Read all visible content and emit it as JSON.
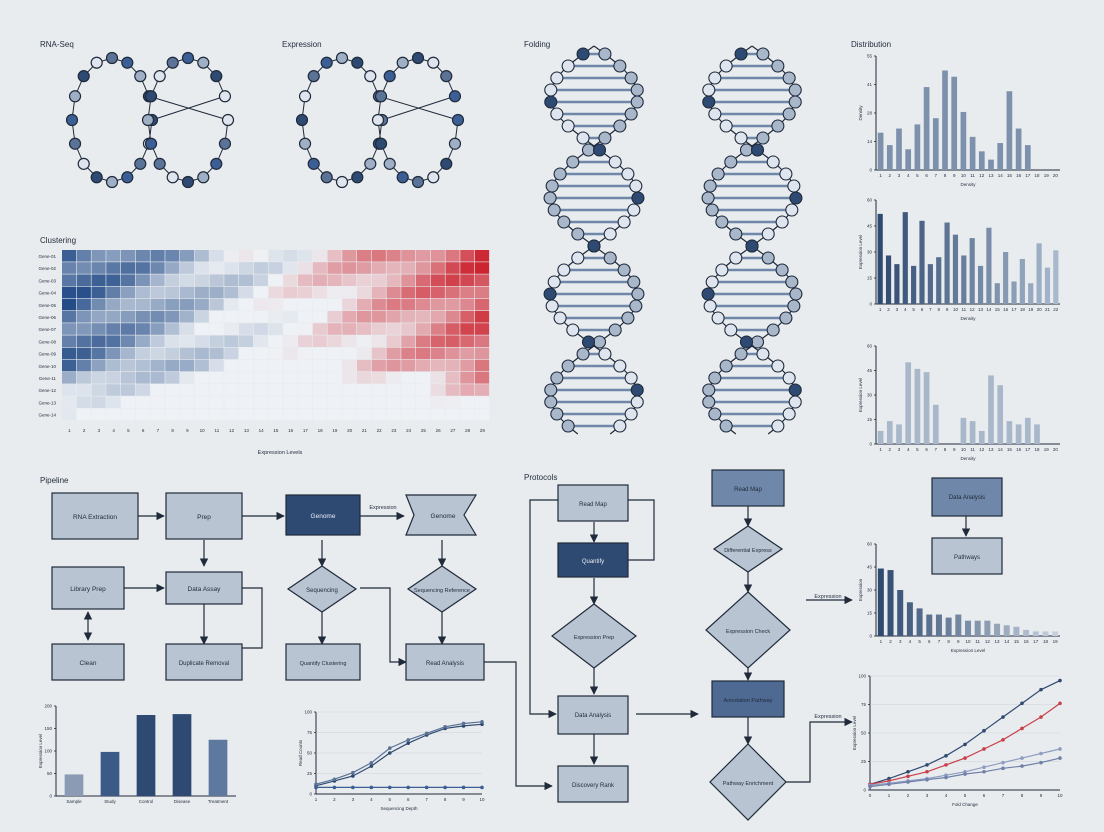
{
  "sections": {
    "rnaseq": "RNA-Seq",
    "expression": "Expression",
    "folding": "Folding",
    "distribution": "Distribution",
    "heatmap": "Clustering",
    "pipeline": "Pipeline",
    "protocol": "Protocols"
  },
  "heatmap": {
    "rows": 14,
    "cols": 29,
    "row_labels": [
      "Gene-01",
      "Gene-02",
      "Gene-03",
      "Gene-04",
      "Gene-05",
      "Gene-06",
      "Gene-07",
      "Gene-08",
      "Gene-09",
      "Gene-10",
      "Gene-11",
      "Gene-12",
      "Gene-13",
      "Gene-14"
    ],
    "col_labels": [
      "1",
      "2",
      "3",
      "4",
      "5",
      "6",
      "7",
      "8",
      "9",
      "10",
      "11",
      "12",
      "13",
      "14",
      "15",
      "16",
      "17",
      "18",
      "19",
      "20",
      "21",
      "22",
      "23",
      "24",
      "25",
      "26",
      "27",
      "28",
      "29"
    ],
    "xlabel": "Expression Levels",
    "colors": {
      "low": "#3b5f94",
      "mid": "#eef1f5",
      "high": "#d2454f"
    }
  },
  "flow_left": {
    "nodes": {
      "rna": "RNA Extraction",
      "prep": "Prep",
      "library": "Library Prep",
      "data_assay": "Data Assay",
      "qc": "Clean",
      "dedup": "Duplicate Removal",
      "genome": "Genome",
      "sequencing": "Sequencing",
      "quantify": "Quantify Clustering",
      "genome2": "Genome",
      "sequencing_ref": "Sequencing Reference",
      "read_analysis": "Read Analysis"
    },
    "edge_label": "Expression"
  },
  "flow_mid": {
    "nodes": {
      "read_map": "Read Map",
      "quantify": "Quantify",
      "expression_prep": "Expression Prep",
      "data_analysis": "Data Analysis",
      "discovery": "Discovery Rank"
    }
  },
  "flow_right": {
    "nodes": {
      "read_map": "Read Map",
      "diff": "Differential Express",
      "expression_check": "Expression Check",
      "annotation": "Annotation Pathway",
      "pathway": "Pathway Enrichment",
      "data_analysis": "Data Analysis",
      "pathways": "Pathways"
    },
    "edge_label": "Expression",
    "edge_label2": "Expression"
  },
  "chart_data": [
    {
      "type": "bar",
      "ylabel": "Density",
      "xlabel": "Density",
      "categories": [
        "1",
        "2",
        "3",
        "4",
        "5",
        "6",
        "7",
        "8",
        "9",
        "10",
        "11",
        "12",
        "13",
        "14",
        "15",
        "16",
        "17",
        "18",
        "19",
        "20"
      ],
      "values": [
        18,
        12,
        20,
        10,
        22,
        40,
        25,
        48,
        45,
        28,
        16,
        9,
        5,
        13,
        38,
        20,
        12,
        0,
        0,
        0
      ],
      "ylim": [
        0,
        55
      ],
      "color": "#7d91ad"
    },
    {
      "type": "bar",
      "ylabel": "Expression Level",
      "xlabel": "Density",
      "categories": [
        "1",
        "2",
        "3",
        "4",
        "5",
        "6",
        "7",
        "8",
        "9",
        "10",
        "11",
        "12",
        "13",
        "14",
        "15",
        "16",
        "17",
        "18",
        "19",
        "20",
        "21",
        "22"
      ],
      "values": [
        52,
        28,
        23,
        53,
        22,
        48,
        23,
        27,
        47,
        40,
        28,
        38,
        22,
        44,
        12,
        30,
        13,
        26,
        12,
        35,
        21,
        31
      ],
      "ylim": [
        0,
        60
      ],
      "color_gradient": [
        "#2f4a70",
        "#a8b8cd"
      ]
    },
    {
      "type": "bar",
      "ylabel": "Expression Level",
      "xlabel": "Density",
      "categories": [
        "1",
        "2",
        "3",
        "4",
        "5",
        "6",
        "7",
        "8",
        "9",
        "10",
        "11",
        "12",
        "13",
        "14",
        "15",
        "16",
        "17",
        "18",
        "19",
        "20"
      ],
      "values": [
        8,
        14,
        12,
        50,
        46,
        44,
        24,
        0,
        0,
        16,
        14,
        8,
        42,
        36,
        14,
        12,
        16,
        12,
        0,
        0
      ],
      "ylim": [
        0,
        60
      ],
      "color": "#a9b7cb"
    },
    {
      "type": "bar",
      "ylabel": "Expression",
      "xlabel": "Expression Level",
      "categories": [
        "1",
        "2",
        "3",
        "4",
        "5",
        "6",
        "7",
        "8",
        "9",
        "10",
        "11",
        "12",
        "13",
        "14",
        "15",
        "16",
        "17",
        "18",
        "19"
      ],
      "values": [
        44,
        43,
        30,
        22,
        18,
        14,
        14,
        12,
        14,
        10,
        10,
        10,
        8,
        7,
        6,
        4,
        3,
        3,
        3
      ],
      "ylim": [
        0,
        60
      ],
      "color_gradient": [
        "#2f4a70",
        "#c7d1de"
      ]
    },
    {
      "type": "bar",
      "ylabel": "Expression Level",
      "categories": [
        "Sample",
        "Study",
        "Control",
        "Disease",
        "Treatment"
      ],
      "values": [
        48,
        98,
        180,
        182,
        125
      ],
      "ylim": [
        0,
        200
      ],
      "colors": [
        "#8b9bb3",
        "#3c5a86",
        "#2e4a72",
        "#2e4a72",
        "#5e79a0"
      ]
    },
    {
      "type": "line",
      "ylabel": "Read Counts",
      "xlabel": "Sequencing Depth",
      "x": [
        1,
        2,
        3,
        4,
        5,
        6,
        7,
        8,
        9,
        10
      ],
      "ylim": [
        0,
        100
      ],
      "series": [
        {
          "values": [
            10,
            16,
            22,
            34,
            50,
            62,
            72,
            80,
            83,
            85
          ],
          "color": "#2f4a70"
        },
        {
          "values": [
            12,
            18,
            26,
            38,
            56,
            66,
            74,
            82,
            86,
            88
          ],
          "color": "#5b7397"
        },
        {
          "values": [
            8,
            8,
            8,
            8,
            8,
            8,
            8,
            8,
            8,
            8
          ],
          "color": "#3b5f94"
        }
      ]
    },
    {
      "type": "line",
      "ylabel": "Expression Level",
      "xlabel": "Fold Change",
      "x": [
        0,
        1,
        2,
        3,
        4,
        5,
        6,
        7,
        8,
        9,
        10
      ],
      "ylim": [
        0,
        100
      ],
      "series": [
        {
          "values": [
            5,
            10,
            16,
            22,
            30,
            40,
            52,
            64,
            76,
            88,
            96
          ],
          "color": "#2f4a70"
        },
        {
          "values": [
            5,
            8,
            12,
            16,
            22,
            28,
            36,
            44,
            54,
            64,
            76
          ],
          "color": "#c8404a"
        },
        {
          "values": [
            4,
            6,
            8,
            10,
            13,
            16,
            20,
            24,
            28,
            32,
            36
          ],
          "color": "#8e9dc0"
        },
        {
          "values": [
            3,
            5,
            7,
            9,
            11,
            14,
            16,
            19,
            21,
            24,
            28
          ],
          "color": "#6e80a8"
        }
      ]
    }
  ]
}
